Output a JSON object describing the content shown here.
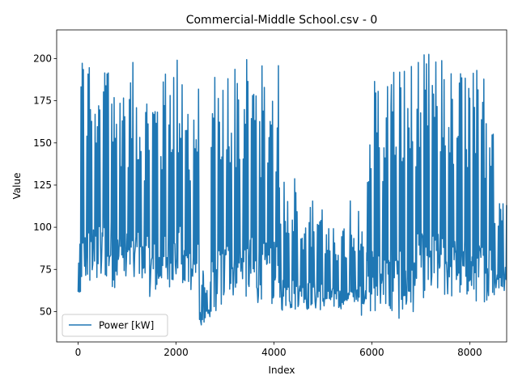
{
  "chart_data": {
    "type": "line",
    "title": "Commercial-Middle School.csv - 0",
    "xlabel": "Index",
    "ylabel": "Value",
    "xlim": [
      -438,
      8754
    ],
    "ylim": [
      32,
      217
    ],
    "xticks": [
      0,
      2000,
      4000,
      6000,
      8000
    ],
    "yticks": [
      50,
      75,
      100,
      125,
      150,
      175,
      200
    ],
    "grid": false,
    "legend": "lower-left",
    "series": [
      {
        "name": "Power [kW]",
        "color": "#1f77b4",
        "segments": [
          {
            "x_start": 0,
            "x_end": 60,
            "low": 54,
            "high": 90
          },
          {
            "x_start": 60,
            "x_end": 520,
            "low": 57,
            "high": 205
          },
          {
            "x_start": 520,
            "x_end": 700,
            "low": 60,
            "high": 212
          },
          {
            "x_start": 700,
            "x_end": 1260,
            "low": 57,
            "high": 198
          },
          {
            "x_start": 1260,
            "x_end": 1440,
            "low": 56,
            "high": 185
          },
          {
            "x_start": 1440,
            "x_end": 1760,
            "low": 52,
            "high": 188
          },
          {
            "x_start": 1760,
            "x_end": 2100,
            "low": 57,
            "high": 204
          },
          {
            "x_start": 2100,
            "x_end": 2480,
            "low": 52,
            "high": 186
          },
          {
            "x_start": 2480,
            "x_end": 2560,
            "low": 40,
            "high": 75
          },
          {
            "x_start": 2560,
            "x_end": 2720,
            "low": 42,
            "high": 72
          },
          {
            "x_start": 2720,
            "x_end": 3000,
            "low": 42,
            "high": 195
          },
          {
            "x_start": 3000,
            "x_end": 3600,
            "low": 50,
            "high": 200
          },
          {
            "x_start": 3600,
            "x_end": 4100,
            "low": 46,
            "high": 197
          },
          {
            "x_start": 4100,
            "x_end": 4480,
            "low": 46,
            "high": 132
          },
          {
            "x_start": 4480,
            "x_end": 5000,
            "low": 47,
            "high": 118
          },
          {
            "x_start": 5000,
            "x_end": 5560,
            "low": 49,
            "high": 100
          },
          {
            "x_start": 5560,
            "x_end": 5900,
            "low": 44,
            "high": 118
          },
          {
            "x_start": 5900,
            "x_end": 6400,
            "low": 40,
            "high": 195
          },
          {
            "x_start": 6400,
            "x_end": 6900,
            "low": 37,
            "high": 200
          },
          {
            "x_start": 6900,
            "x_end": 7500,
            "low": 50,
            "high": 205
          },
          {
            "x_start": 7500,
            "x_end": 8000,
            "low": 50,
            "high": 196
          },
          {
            "x_start": 8000,
            "x_end": 8500,
            "low": 48,
            "high": 195
          },
          {
            "x_start": 8500,
            "x_end": 8760,
            "low": 56,
            "high": 127
          }
        ]
      }
    ]
  }
}
